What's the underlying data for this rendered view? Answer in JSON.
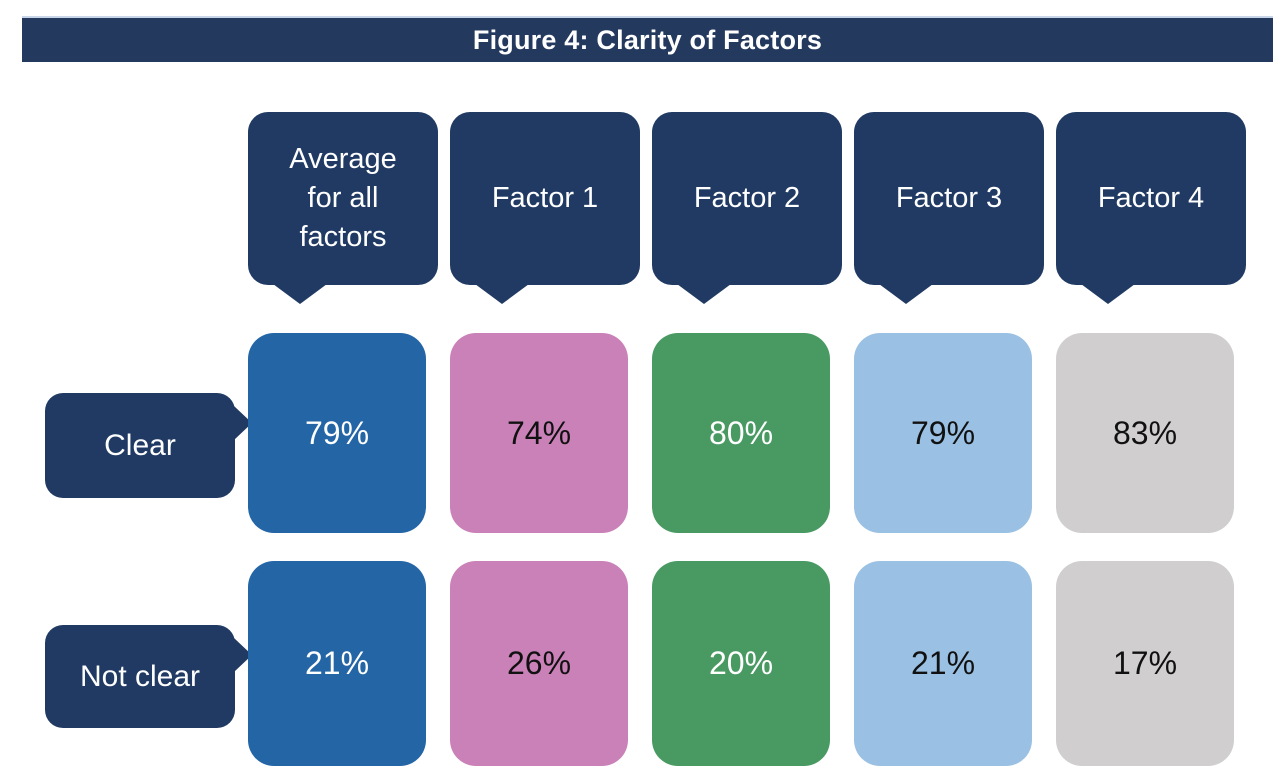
{
  "figure": {
    "title": "Figure 4: Clarity of Factors"
  },
  "columns": [
    {
      "label": "Average for all factors"
    },
    {
      "label": "Factor 1"
    },
    {
      "label": "Factor 2"
    },
    {
      "label": "Factor 3"
    },
    {
      "label": "Factor 4"
    }
  ],
  "rows": [
    {
      "label": "Clear",
      "values": [
        "79%",
        "74%",
        "80%",
        "79%",
        "83%"
      ]
    },
    {
      "label": "Not clear",
      "values": [
        "21%",
        "26%",
        "20%",
        "21%",
        "17%"
      ]
    }
  ],
  "palette": {
    "dark_navy_bubble": "#203a63",
    "title_bar_navy": "#24395e",
    "average_blue": "#2465a6",
    "factor1_pink": "#ca81b8",
    "factor2_green": "#499a62",
    "factor3_light_blue": "#9ac1e3",
    "factor4_gray": "#d0cece"
  },
  "chart_data": {
    "type": "table",
    "title": "Figure 4: Clarity of Factors",
    "columns": [
      "Average for all factors",
      "Factor 1",
      "Factor 2",
      "Factor 3",
      "Factor 4"
    ],
    "row_categories": [
      "Clear",
      "Not clear"
    ],
    "series": [
      {
        "name": "Clear",
        "values_pct": [
          79,
          74,
          80,
          79,
          83
        ]
      },
      {
        "name": "Not clear",
        "values_pct": [
          21,
          26,
          20,
          21,
          17
        ]
      }
    ],
    "unit": "%",
    "layout": "matrix of rounded tiles; navy callout bubbles label columns (tail down) and rows (tail right)"
  }
}
